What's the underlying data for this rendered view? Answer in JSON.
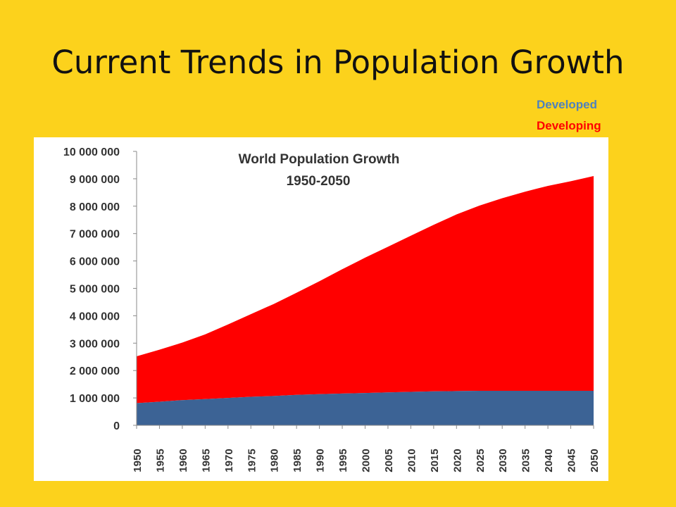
{
  "slide": {
    "title": "Current Trends in Population Growth"
  },
  "legend": [
    {
      "label": "Developed",
      "color": "#4F81BD"
    },
    {
      "label": "Developing",
      "color": "#FF0000"
    }
  ],
  "chart_data": {
    "type": "area",
    "stacked": true,
    "title": "World Population Growth",
    "subtitle": "1950-2050",
    "x": [
      1950,
      1955,
      1960,
      1965,
      1970,
      1975,
      1980,
      1985,
      1990,
      1995,
      2000,
      2005,
      2010,
      2015,
      2020,
      2025,
      2030,
      2035,
      2040,
      2045,
      2050
    ],
    "ylim": [
      0,
      10000000
    ],
    "yticks": [
      0,
      1000000,
      2000000,
      3000000,
      4000000,
      5000000,
      6000000,
      7000000,
      8000000,
      9000000,
      10000000
    ],
    "ytick_labels": [
      "0",
      "1 000 000",
      "2 000 000",
      "3 000 000",
      "4 000 000",
      "5 000 000",
      "6 000 000",
      "7 000 000",
      "8 000 000",
      "9 000 000",
      "10 000 000"
    ],
    "series": [
      {
        "name": "Developed",
        "color": "#3C6395",
        "values": [
          810000,
          860000,
          920000,
          960000,
          1000000,
          1040000,
          1070000,
          1110000,
          1140000,
          1160000,
          1180000,
          1200000,
          1220000,
          1240000,
          1250000,
          1260000,
          1260000,
          1260000,
          1260000,
          1260000,
          1260000
        ]
      },
      {
        "name": "Developing",
        "color": "#FF0000",
        "values": [
          1710000,
          1900000,
          2100000,
          2360000,
          2680000,
          3020000,
          3360000,
          3730000,
          4120000,
          4540000,
          4940000,
          5320000,
          5700000,
          6080000,
          6450000,
          6760000,
          7030000,
          7270000,
          7480000,
          7650000,
          7840000
        ]
      }
    ]
  }
}
